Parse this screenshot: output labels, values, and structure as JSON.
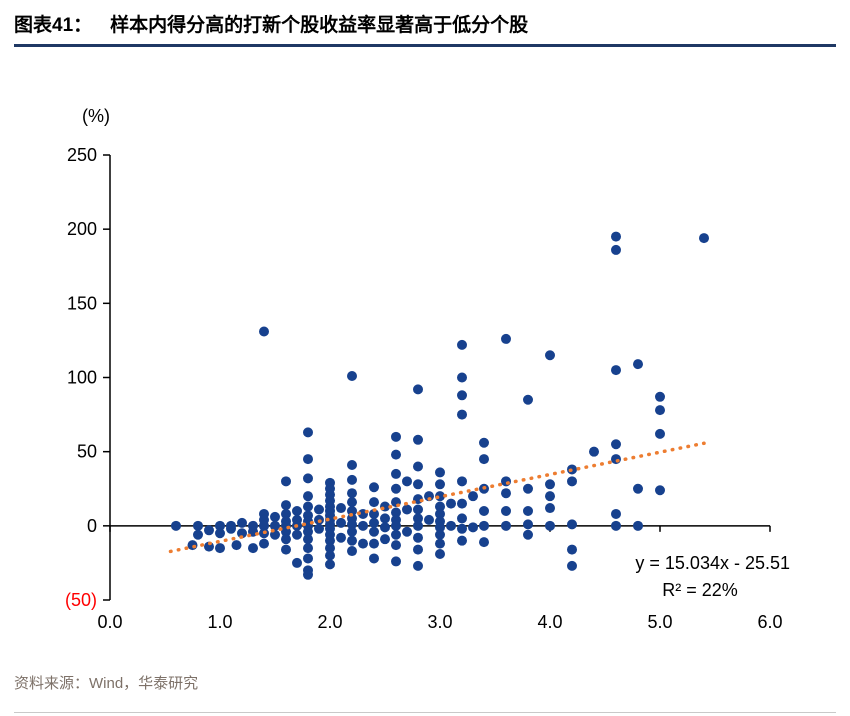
{
  "header": {
    "label": "图表41：",
    "title": "样本内得分高的打新个股收益率显著高于低分个股"
  },
  "footer": {
    "source": "资料来源：Wind，华泰研究"
  },
  "colors": {
    "title_rule": "#1f3864",
    "footer_rule": "#c9c9c9",
    "axis": "#000000",
    "point": "#17418e",
    "trend": "#ed7d31",
    "negative_tick_label": "#ff0000"
  },
  "chart_data": {
    "type": "scatter",
    "title": "样本内得分高的打新个股收益率显著高于低分个股",
    "unit_label": "(%)",
    "xlim": [
      0,
      6
    ],
    "ylim": [
      -50,
      250
    ],
    "grid": false,
    "legend": null,
    "x_ticks": [
      {
        "value": 0,
        "label": "0.0"
      },
      {
        "value": 1,
        "label": "1.0"
      },
      {
        "value": 2,
        "label": "2.0"
      },
      {
        "value": 3,
        "label": "3.0"
      },
      {
        "value": 4,
        "label": "4.0"
      },
      {
        "value": 5,
        "label": "5.0"
      },
      {
        "value": 6,
        "label": "6.0"
      }
    ],
    "y_ticks": [
      {
        "value": 250,
        "label": "250"
      },
      {
        "value": 200,
        "label": "200"
      },
      {
        "value": 150,
        "label": "150"
      },
      {
        "value": 100,
        "label": "100"
      },
      {
        "value": 50,
        "label": "50"
      },
      {
        "value": 0,
        "label": "0"
      },
      {
        "value": -50,
        "label": "(50)",
        "color": "#ff0000"
      }
    ],
    "point_color": "#17418e",
    "trendline": {
      "slope": 15.034,
      "intercept": -25.51,
      "x_start": 0.55,
      "x_end": 5.4,
      "color": "#ed7d31",
      "equation": "y = 15.034x - 25.51",
      "r_squared": "R² = 22%"
    },
    "points": [
      [
        0.6,
        0
      ],
      [
        0.75,
        -13
      ],
      [
        0.8,
        0
      ],
      [
        0.8,
        -6
      ],
      [
        0.9,
        -3
      ],
      [
        0.9,
        -14
      ],
      [
        1.0,
        0
      ],
      [
        1.0,
        -5
      ],
      [
        1.0,
        -15
      ],
      [
        1.1,
        -2
      ],
      [
        1.1,
        0
      ],
      [
        1.15,
        -13
      ],
      [
        1.2,
        2
      ],
      [
        1.2,
        -5
      ],
      [
        1.3,
        0
      ],
      [
        1.3,
        -4
      ],
      [
        1.3,
        -15
      ],
      [
        1.4,
        131
      ],
      [
        1.4,
        8
      ],
      [
        1.4,
        4
      ],
      [
        1.4,
        0
      ],
      [
        1.4,
        -5
      ],
      [
        1.4,
        -12
      ],
      [
        1.5,
        6
      ],
      [
        1.5,
        0
      ],
      [
        1.5,
        -6
      ],
      [
        1.6,
        30
      ],
      [
        1.6,
        14
      ],
      [
        1.6,
        8
      ],
      [
        1.6,
        3
      ],
      [
        1.6,
        0
      ],
      [
        1.6,
        -4
      ],
      [
        1.6,
        -9
      ],
      [
        1.6,
        -16
      ],
      [
        1.7,
        10
      ],
      [
        1.7,
        4
      ],
      [
        1.7,
        0
      ],
      [
        1.7,
        -6
      ],
      [
        1.7,
        -25
      ],
      [
        1.8,
        63
      ],
      [
        1.8,
        45
      ],
      [
        1.8,
        32
      ],
      [
        1.8,
        20
      ],
      [
        1.8,
        13
      ],
      [
        1.8,
        7
      ],
      [
        1.8,
        3
      ],
      [
        1.8,
        0
      ],
      [
        1.8,
        -4
      ],
      [
        1.8,
        -9
      ],
      [
        1.8,
        -15
      ],
      [
        1.8,
        -22
      ],
      [
        1.8,
        -30
      ],
      [
        1.8,
        -33
      ],
      [
        1.9,
        11
      ],
      [
        1.9,
        4
      ],
      [
        1.9,
        -2
      ],
      [
        2.0,
        29
      ],
      [
        2.0,
        25
      ],
      [
        2.0,
        21
      ],
      [
        2.0,
        17
      ],
      [
        2.0,
        13
      ],
      [
        2.0,
        10
      ],
      [
        2.0,
        7
      ],
      [
        2.0,
        4
      ],
      [
        2.0,
        1
      ],
      [
        2.0,
        -2
      ],
      [
        2.0,
        -6
      ],
      [
        2.0,
        -10
      ],
      [
        2.0,
        -15
      ],
      [
        2.0,
        -20
      ],
      [
        2.0,
        -26
      ],
      [
        2.1,
        12
      ],
      [
        2.1,
        2
      ],
      [
        2.1,
        -8
      ],
      [
        2.2,
        101
      ],
      [
        2.2,
        41
      ],
      [
        2.2,
        31
      ],
      [
        2.2,
        22
      ],
      [
        2.2,
        16
      ],
      [
        2.2,
        10
      ],
      [
        2.2,
        5
      ],
      [
        2.2,
        1
      ],
      [
        2.2,
        -4
      ],
      [
        2.2,
        -10
      ],
      [
        2.2,
        -17
      ],
      [
        2.3,
        8
      ],
      [
        2.3,
        0
      ],
      [
        2.3,
        -12
      ],
      [
        2.4,
        26
      ],
      [
        2.4,
        16
      ],
      [
        2.4,
        8
      ],
      [
        2.4,
        2
      ],
      [
        2.4,
        -4
      ],
      [
        2.4,
        -12
      ],
      [
        2.4,
        -22
      ],
      [
        2.5,
        13
      ],
      [
        2.5,
        5
      ],
      [
        2.5,
        -1
      ],
      [
        2.5,
        -9
      ],
      [
        2.6,
        60
      ],
      [
        2.6,
        48
      ],
      [
        2.6,
        35
      ],
      [
        2.6,
        25
      ],
      [
        2.6,
        16
      ],
      [
        2.6,
        9
      ],
      [
        2.6,
        4
      ],
      [
        2.6,
        0
      ],
      [
        2.6,
        -6
      ],
      [
        2.6,
        -13
      ],
      [
        2.6,
        -24
      ],
      [
        2.7,
        30
      ],
      [
        2.7,
        11
      ],
      [
        2.7,
        -4
      ],
      [
        2.8,
        92
      ],
      [
        2.8,
        58
      ],
      [
        2.8,
        40
      ],
      [
        2.8,
        28
      ],
      [
        2.8,
        18
      ],
      [
        2.8,
        11
      ],
      [
        2.8,
        5
      ],
      [
        2.8,
        0
      ],
      [
        2.8,
        -8
      ],
      [
        2.8,
        -16
      ],
      [
        2.8,
        -27
      ],
      [
        2.9,
        20
      ],
      [
        2.9,
        4
      ],
      [
        3.0,
        36
      ],
      [
        3.0,
        28
      ],
      [
        3.0,
        20
      ],
      [
        3.0,
        13
      ],
      [
        3.0,
        8
      ],
      [
        3.0,
        3
      ],
      [
        3.0,
        -1
      ],
      [
        3.0,
        -6
      ],
      [
        3.0,
        -12
      ],
      [
        3.0,
        -19
      ],
      [
        3.1,
        15
      ],
      [
        3.1,
        0
      ],
      [
        3.2,
        122
      ],
      [
        3.2,
        100
      ],
      [
        3.2,
        88
      ],
      [
        3.2,
        75
      ],
      [
        3.2,
        30
      ],
      [
        3.2,
        15
      ],
      [
        3.2,
        5
      ],
      [
        3.2,
        -2
      ],
      [
        3.2,
        -10
      ],
      [
        3.3,
        20
      ],
      [
        3.3,
        -1
      ],
      [
        3.4,
        56
      ],
      [
        3.4,
        45
      ],
      [
        3.4,
        25
      ],
      [
        3.4,
        10
      ],
      [
        3.4,
        0
      ],
      [
        3.4,
        -11
      ],
      [
        3.6,
        126
      ],
      [
        3.6,
        30
      ],
      [
        3.6,
        22
      ],
      [
        3.6,
        10
      ],
      [
        3.6,
        0
      ],
      [
        3.8,
        85
      ],
      [
        3.8,
        25
      ],
      [
        3.8,
        10
      ],
      [
        3.8,
        1
      ],
      [
        3.8,
        -6
      ],
      [
        4.0,
        115
      ],
      [
        4.0,
        28
      ],
      [
        4.0,
        20
      ],
      [
        4.0,
        12
      ],
      [
        4.0,
        0
      ],
      [
        4.2,
        38
      ],
      [
        4.2,
        30
      ],
      [
        4.2,
        1
      ],
      [
        4.2,
        -16
      ],
      [
        4.2,
        -27
      ],
      [
        4.4,
        50
      ],
      [
        4.6,
        195
      ],
      [
        4.6,
        186
      ],
      [
        4.6,
        105
      ],
      [
        4.6,
        55
      ],
      [
        4.6,
        45
      ],
      [
        4.6,
        8
      ],
      [
        4.6,
        0
      ],
      [
        4.8,
        109
      ],
      [
        4.8,
        25
      ],
      [
        4.8,
        0
      ],
      [
        5.0,
        87
      ],
      [
        5.0,
        78
      ],
      [
        5.0,
        62
      ],
      [
        5.0,
        24
      ],
      [
        5.4,
        194
      ]
    ]
  }
}
